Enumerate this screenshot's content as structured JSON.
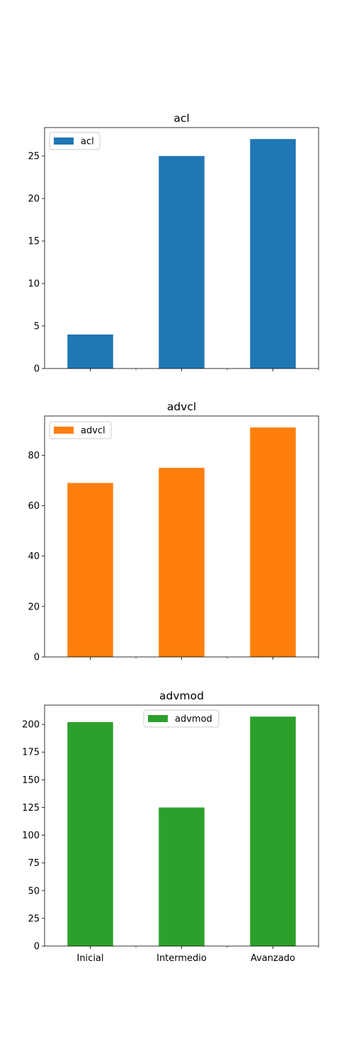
{
  "chart_data": [
    {
      "type": "bar",
      "title": "acl",
      "categories": [
        "Inicial",
        "Intermedio",
        "Avanzado"
      ],
      "series": [
        {
          "name": "acl",
          "values": [
            4,
            25,
            27
          ],
          "color": "#1f77b4"
        }
      ],
      "ylim": [
        0,
        28.35
      ],
      "yticks": [
        0,
        5,
        10,
        15,
        20,
        25
      ],
      "show_xticklabels": false,
      "legend_position": "upper-left",
      "grid": false
    },
    {
      "type": "bar",
      "title": "advcl",
      "categories": [
        "Inicial",
        "Intermedio",
        "Avanzado"
      ],
      "series": [
        {
          "name": "advcl",
          "values": [
            69,
            75,
            91
          ],
          "color": "#ff7f0e"
        }
      ],
      "ylim": [
        0,
        95.55
      ],
      "yticks": [
        0,
        20,
        40,
        60,
        80
      ],
      "show_xticklabels": false,
      "legend_position": "upper-left",
      "grid": false
    },
    {
      "type": "bar",
      "title": "advmod",
      "categories": [
        "Inicial",
        "Intermedio",
        "Avanzado"
      ],
      "series": [
        {
          "name": "advmod",
          "values": [
            202,
            125,
            207
          ],
          "color": "#2ca02c"
        }
      ],
      "ylim": [
        0,
        217.35
      ],
      "yticks": [
        0,
        25,
        50,
        75,
        100,
        125,
        150,
        175,
        200
      ],
      "show_xticklabels": true,
      "legend_position": "upper-center",
      "grid": false
    }
  ]
}
